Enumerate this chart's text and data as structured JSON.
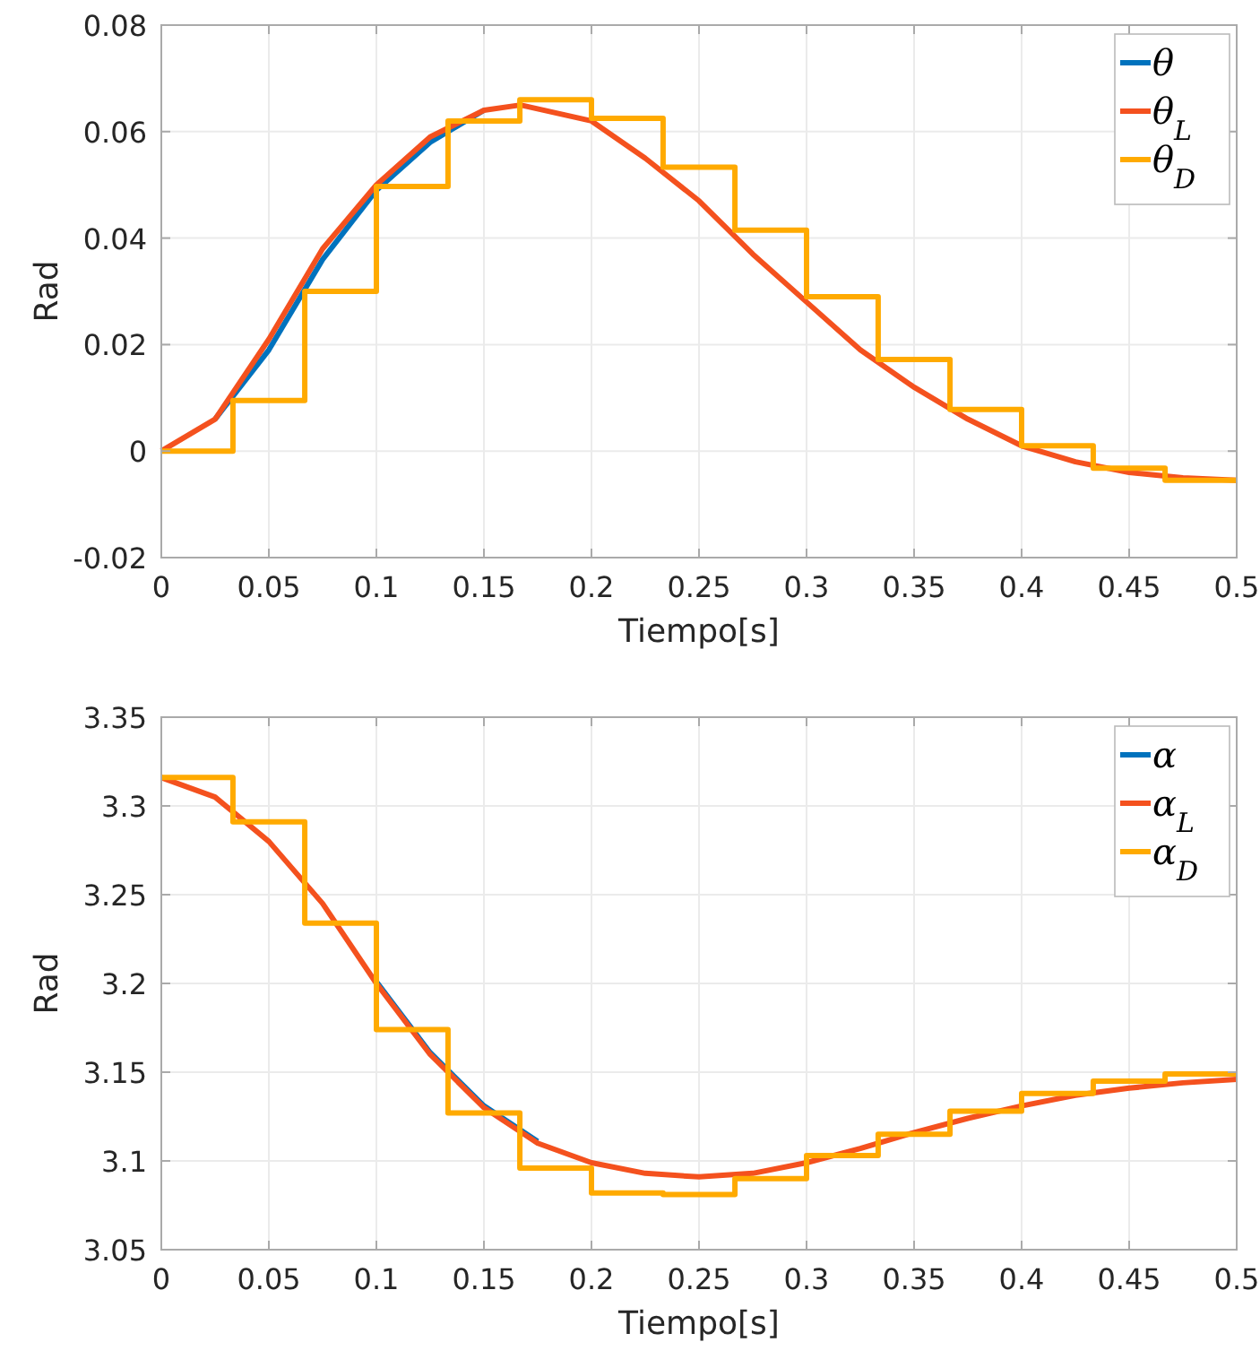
{
  "chart_data": [
    {
      "type": "line",
      "xlabel": "Tiempo[s]",
      "ylabel": "Rad",
      "xlim": [
        0,
        0.5
      ],
      "ylim": [
        -0.02,
        0.08
      ],
      "xticks": [
        0,
        0.05,
        0.1,
        0.15,
        0.2,
        0.25,
        0.3,
        0.35,
        0.4,
        0.45,
        0.5
      ],
      "yticks": [
        -0.02,
        0,
        0.02,
        0.04,
        0.06,
        0.08
      ],
      "grid": true,
      "legend": "top right",
      "series": [
        {
          "name": "θ",
          "color": "#0072bd",
          "type": "line",
          "x": [
            0.025,
            0.05,
            0.075,
            0.1,
            0.125,
            0.15
          ],
          "values": [
            0.006,
            0.019,
            0.036,
            0.049,
            0.058,
            0.064
          ]
        },
        {
          "name": "θ$_{L}$",
          "color": "#f4511e",
          "type": "line",
          "x": [
            0,
            0.025,
            0.05,
            0.075,
            0.1,
            0.125,
            0.15,
            0.167,
            0.2,
            0.225,
            0.25,
            0.275,
            0.3,
            0.325,
            0.35,
            0.375,
            0.4,
            0.425,
            0.45,
            0.475,
            0.5
          ],
          "values": [
            0,
            0.006,
            0.021,
            0.038,
            0.05,
            0.059,
            0.064,
            0.065,
            0.062,
            0.055,
            0.047,
            0.037,
            0.028,
            0.019,
            0.012,
            0.006,
            0.001,
            -0.002,
            -0.004,
            -0.005,
            -0.0055
          ]
        },
        {
          "name": "θ$_{D}$",
          "color": "#ffaa00",
          "type": "step",
          "x": [
            0,
            0.0333,
            0.0667,
            0.1,
            0.1333,
            0.1667,
            0.2,
            0.2333,
            0.2667,
            0.3,
            0.3333,
            0.3667,
            0.4,
            0.4333,
            0.4667,
            0.5
          ],
          "values": [
            0,
            0.0095,
            0.03,
            0.0497,
            0.062,
            0.066,
            0.0625,
            0.0533,
            0.0415,
            0.029,
            0.0172,
            0.0078,
            0.001,
            -0.0032,
            -0.0055,
            -0.0055
          ]
        }
      ]
    },
    {
      "type": "line",
      "xlabel": "Tiempo[s]",
      "ylabel": "Rad",
      "xlim": [
        0,
        0.5
      ],
      "ylim": [
        3.05,
        3.35
      ],
      "xticks": [
        0,
        0.05,
        0.1,
        0.15,
        0.2,
        0.25,
        0.3,
        0.35,
        0.4,
        0.45,
        0.5
      ],
      "yticks": [
        3.05,
        3.1,
        3.15,
        3.2,
        3.25,
        3.3,
        3.35
      ],
      "grid": true,
      "legend": "top right",
      "series": [
        {
          "name": "α",
          "color": "#0072bd",
          "type": "line",
          "x": [
            0.1,
            0.125,
            0.15,
            0.175
          ],
          "values": [
            3.201,
            3.161,
            3.131,
            3.111
          ]
        },
        {
          "name": "α$_{L}$",
          "color": "#f4511e",
          "type": "line",
          "x": [
            0,
            0.025,
            0.05,
            0.075,
            0.1,
            0.125,
            0.15,
            0.175,
            0.2,
            0.225,
            0.25,
            0.275,
            0.3,
            0.325,
            0.35,
            0.375,
            0.4,
            0.425,
            0.45,
            0.475,
            0.5
          ],
          "values": [
            3.316,
            3.305,
            3.28,
            3.245,
            3.2,
            3.16,
            3.13,
            3.11,
            3.099,
            3.093,
            3.091,
            3.093,
            3.099,
            3.107,
            3.116,
            3.124,
            3.131,
            3.137,
            3.141,
            3.144,
            3.146
          ]
        },
        {
          "name": "α$_{D}$",
          "color": "#ffaa00",
          "type": "step",
          "x": [
            0,
            0.0333,
            0.0667,
            0.1,
            0.1333,
            0.1667,
            0.2,
            0.2333,
            0.2667,
            0.3,
            0.3333,
            0.3667,
            0.4,
            0.4333,
            0.4667,
            0.5
          ],
          "values": [
            3.316,
            3.291,
            3.234,
            3.174,
            3.127,
            3.096,
            3.082,
            3.081,
            3.09,
            3.103,
            3.115,
            3.128,
            3.138,
            3.145,
            3.149,
            3.149
          ]
        }
      ]
    }
  ]
}
